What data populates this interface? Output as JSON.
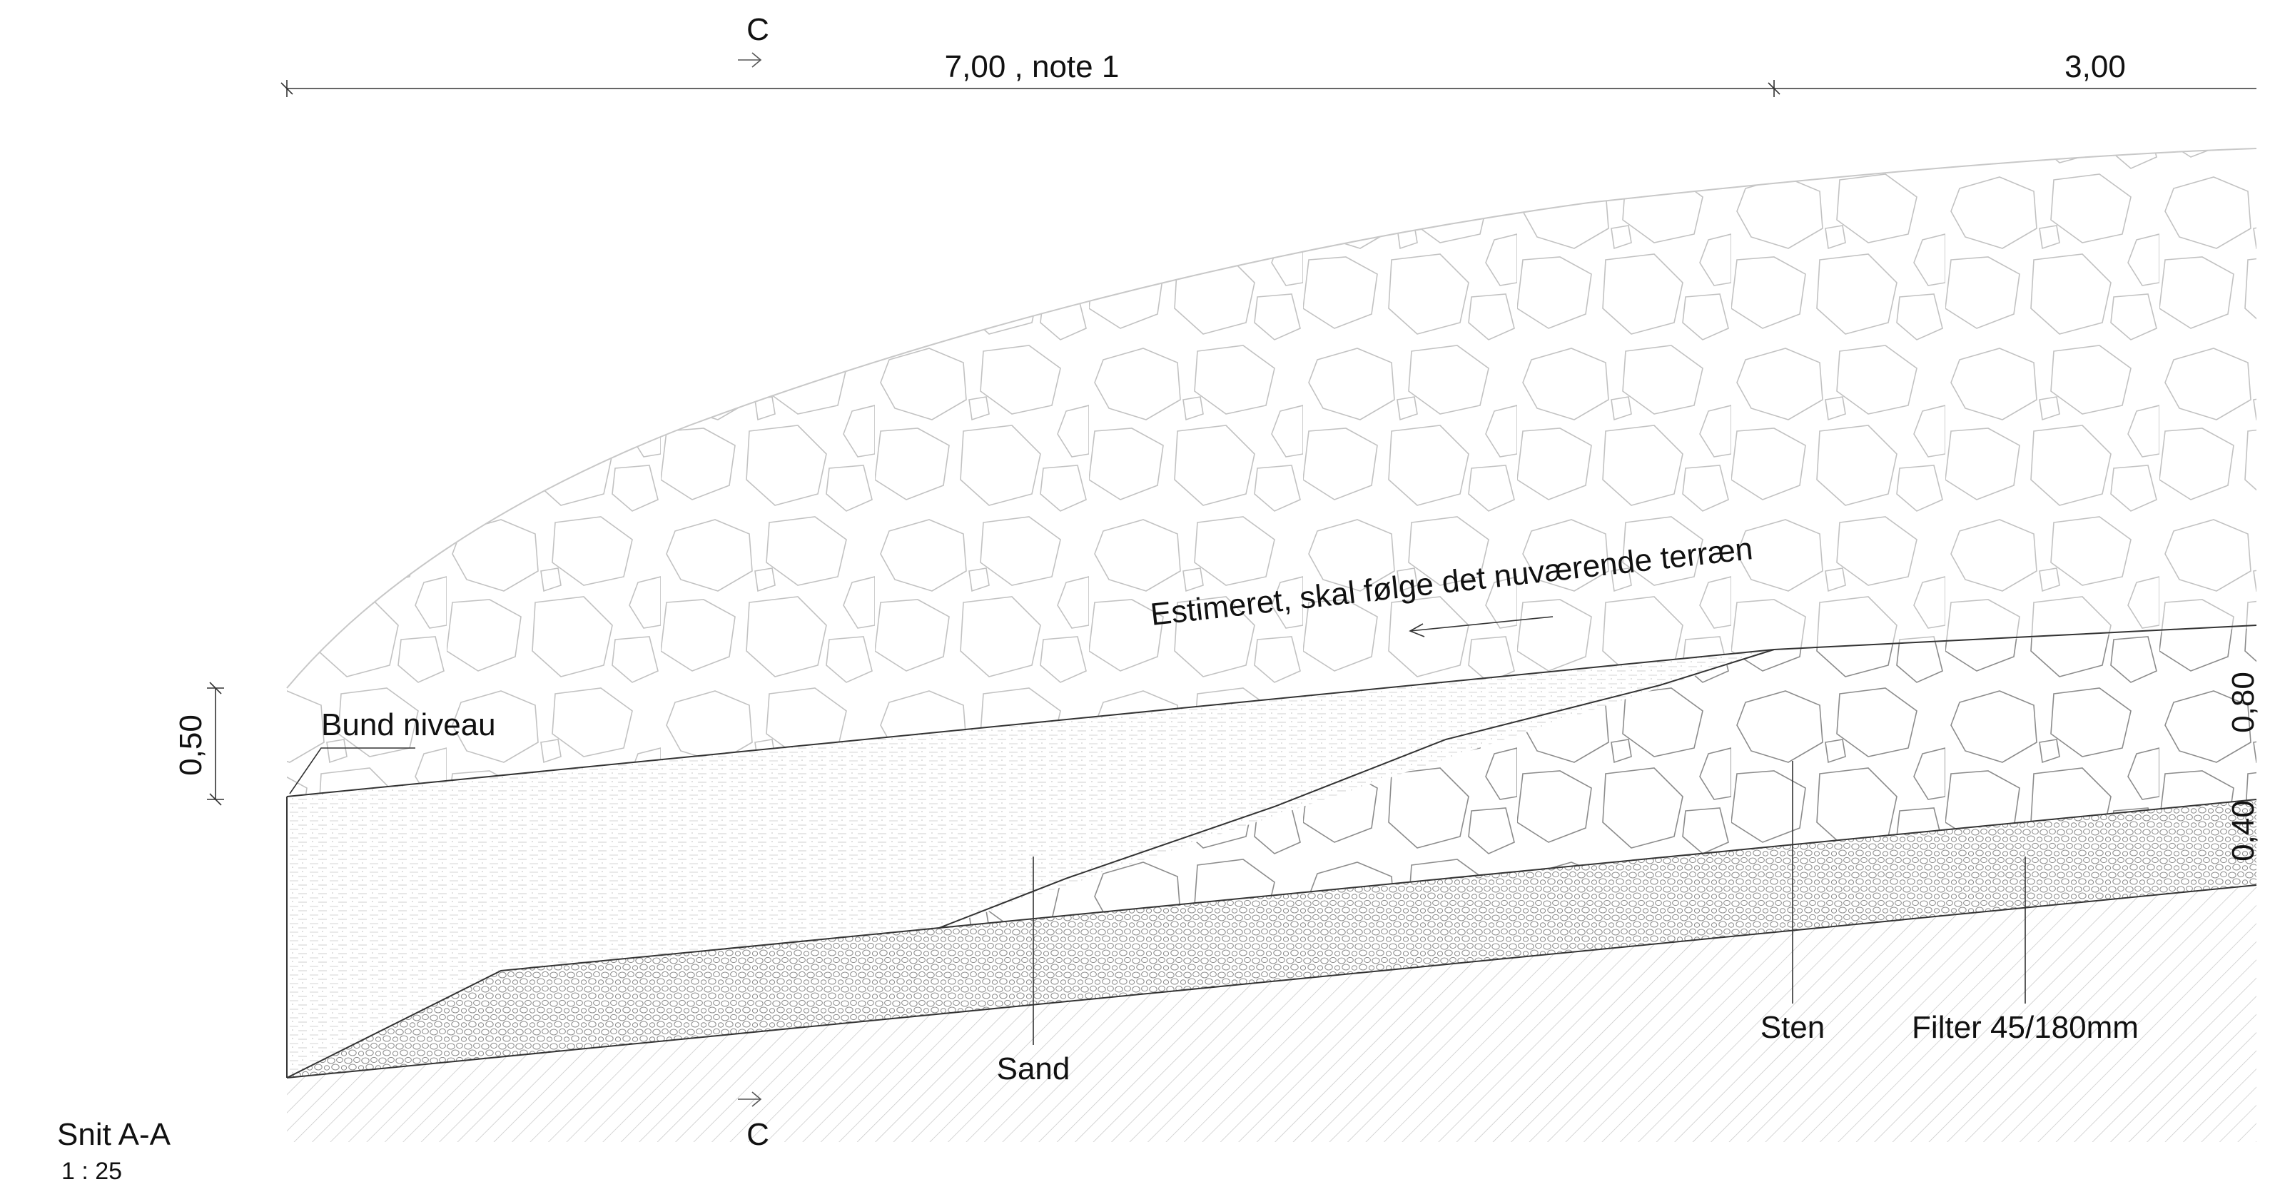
{
  "section_mark_top": "C",
  "section_mark_bottom": "C",
  "dim_main": "7,00 , note 1",
  "dim_secondary": "3,00",
  "dim_left_vertical": "0,50",
  "dim_right_upper": "0,80",
  "dim_right_lower": "0,40",
  "annotation_terrain": "Estimeret, skal følge det nuværende terræn",
  "label_bund": "Bund niveau",
  "label_sand": "Sand",
  "label_sten": "Sten",
  "label_filter": "Filter 45/180mm",
  "title_section": "Snit A-A",
  "title_scale": "1 : 25",
  "colors": {
    "line": "#333333",
    "hatch": "#bdbdbd",
    "stone": "#9a9a9a",
    "sand": "#c4c4c4"
  }
}
